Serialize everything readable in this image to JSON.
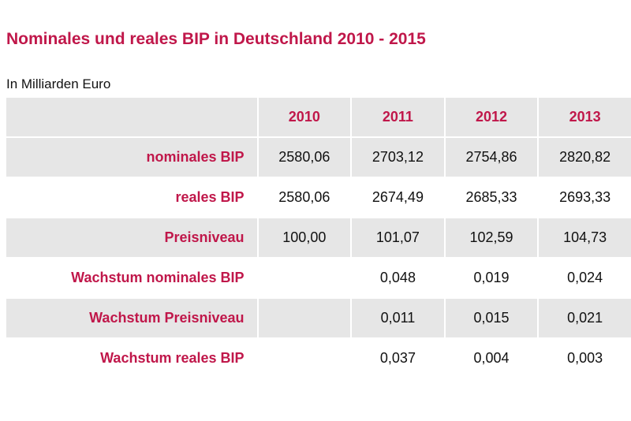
{
  "title": "Nominales und reales BIP in Deutschland 2010 - 2015",
  "subtitle": "In Milliarden Euro",
  "colors": {
    "accent": "#c0174a",
    "row_shade": "#e6e6e6"
  },
  "table": {
    "columns": [
      "2010",
      "2011",
      "2012",
      "2013"
    ],
    "rows": [
      {
        "label": "nominales BIP",
        "values": [
          "2580,06",
          "2703,12",
          "2754,86",
          "2820,82"
        ]
      },
      {
        "label": "reales BIP",
        "values": [
          "2580,06",
          "2674,49",
          "2685,33",
          "2693,33"
        ]
      },
      {
        "label": "Preisniveau",
        "values": [
          "100,00",
          "101,07",
          "102,59",
          "104,73"
        ]
      },
      {
        "label": "Wachstum nominales BIP",
        "values": [
          "",
          "0,048",
          "0,019",
          "0,024"
        ]
      },
      {
        "label": "Wachstum Preisniveau",
        "values": [
          "",
          "0,011",
          "0,015",
          "0,021"
        ]
      },
      {
        "label": "Wachstum reales BIP",
        "values": [
          "",
          "0,037",
          "0,004",
          "0,003"
        ]
      }
    ]
  }
}
